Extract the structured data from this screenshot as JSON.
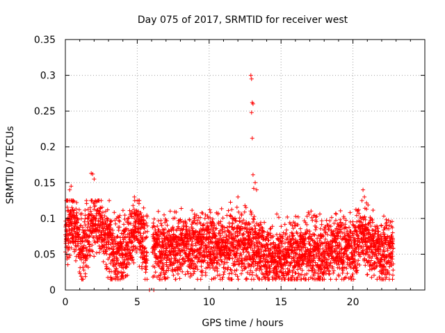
{
  "chart_data": {
    "type": "scatter",
    "title": "Day 075 of 2017, SRMTID for receiver west",
    "xlabel": "GPS time / hours",
    "ylabel": "SRMTID / TECUs",
    "xlim": [
      0,
      25
    ],
    "ylim": [
      0,
      0.35
    ],
    "x_ticks": [
      0,
      5,
      10,
      15,
      20
    ],
    "x_tick_labels": [
      "0",
      "5",
      "10",
      "15",
      "20"
    ],
    "y_ticks": [
      0,
      0.05,
      0.1,
      0.15,
      0.2,
      0.25,
      0.3,
      0.35
    ],
    "y_tick_labels": [
      "0",
      "0.05",
      "0.1",
      "0.15",
      "0.2",
      "0.25",
      "0.3",
      "0.35"
    ],
    "grid": true,
    "marker": "+",
    "color": "#ff0000",
    "x_range_hours": [
      0,
      22.8
    ],
    "baseline_profile": [
      {
        "x": 0.0,
        "y": 0.08
      },
      {
        "x": 0.5,
        "y": 0.1
      },
      {
        "x": 1.0,
        "y": 0.055
      },
      {
        "x": 1.5,
        "y": 0.07
      },
      {
        "x": 2.0,
        "y": 0.1
      },
      {
        "x": 2.5,
        "y": 0.09
      },
      {
        "x": 3.0,
        "y": 0.065
      },
      {
        "x": 3.5,
        "y": 0.05
      },
      {
        "x": 4.0,
        "y": 0.06
      },
      {
        "x": 4.5,
        "y": 0.07
      },
      {
        "x": 5.0,
        "y": 0.09
      },
      {
        "x": 5.5,
        "y": 0.06
      },
      {
        "x": 6.0,
        "y": 0.06
      },
      {
        "x": 7.0,
        "y": 0.055
      },
      {
        "x": 8.0,
        "y": 0.06
      },
      {
        "x": 9.0,
        "y": 0.065
      },
      {
        "x": 10.0,
        "y": 0.065
      },
      {
        "x": 11.0,
        "y": 0.06
      },
      {
        "x": 12.0,
        "y": 0.065
      },
      {
        "x": 12.5,
        "y": 0.065
      },
      {
        "x": 13.0,
        "y": 0.06
      },
      {
        "x": 13.5,
        "y": 0.06
      },
      {
        "x": 14.0,
        "y": 0.05
      },
      {
        "x": 15.0,
        "y": 0.045
      },
      {
        "x": 16.0,
        "y": 0.055
      },
      {
        "x": 17.0,
        "y": 0.055
      },
      {
        "x": 18.0,
        "y": 0.055
      },
      {
        "x": 19.0,
        "y": 0.06
      },
      {
        "x": 20.0,
        "y": 0.055
      },
      {
        "x": 20.5,
        "y": 0.075
      },
      {
        "x": 21.0,
        "y": 0.07
      },
      {
        "x": 21.5,
        "y": 0.055
      },
      {
        "x": 22.0,
        "y": 0.055
      },
      {
        "x": 22.8,
        "y": 0.06
      }
    ],
    "notable_points": [
      {
        "x": 0.3,
        "y": 0.14
      },
      {
        "x": 0.4,
        "y": 0.145
      },
      {
        "x": 1.8,
        "y": 0.163
      },
      {
        "x": 1.9,
        "y": 0.162
      },
      {
        "x": 2.0,
        "y": 0.155
      },
      {
        "x": 4.8,
        "y": 0.13
      },
      {
        "x": 12.0,
        "y": 0.13
      },
      {
        "x": 12.9,
        "y": 0.3
      },
      {
        "x": 12.95,
        "y": 0.295
      },
      {
        "x": 13.0,
        "y": 0.262
      },
      {
        "x": 13.05,
        "y": 0.26
      },
      {
        "x": 12.95,
        "y": 0.248
      },
      {
        "x": 13.0,
        "y": 0.212
      },
      {
        "x": 13.05,
        "y": 0.161
      },
      {
        "x": 13.2,
        "y": 0.15
      },
      {
        "x": 13.1,
        "y": 0.142
      },
      {
        "x": 13.3,
        "y": 0.14
      },
      {
        "x": 20.7,
        "y": 0.14
      },
      {
        "x": 20.8,
        "y": 0.13
      },
      {
        "x": 5.85,
        "y": 0.0
      },
      {
        "x": 6.15,
        "y": 0.0
      }
    ]
  }
}
